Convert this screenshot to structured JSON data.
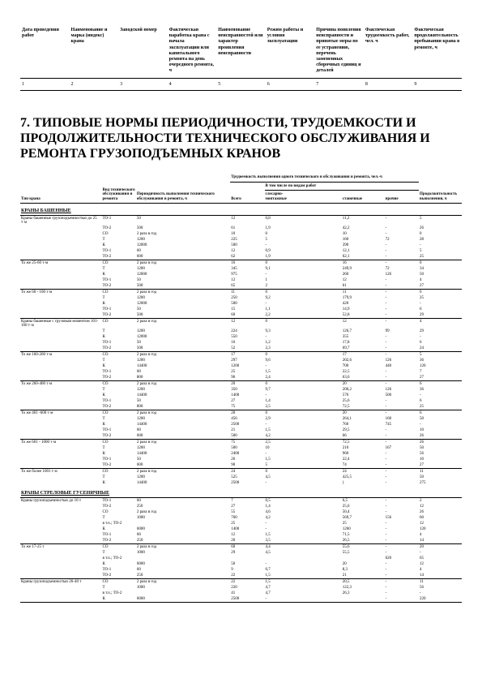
{
  "top_table": {
    "headers": [
      "Дата проведения работ",
      "Наименование и марка (индекс) крана",
      "Заводской номер",
      "Фактическая наработка крана с начала эксплуатации или капитального ремонта на день очередного ремонта, ч",
      "Наименование неисправностей или характер проявления неисправности",
      "Режим работы и условия эксплуатации",
      "Причина появления неисправности и принятые меры по ее устранению, перечень замененных сборочных единиц и деталей",
      "Фактическая трудоемкость работ, чел. ч",
      "Фактическая продолжительность пребывания крана в ремонте, ч"
    ],
    "nums": [
      "1",
      "2",
      "3",
      "4",
      "5",
      "6",
      "7",
      "8",
      "9"
    ]
  },
  "section_title": "7. ТИПОВЫЕ НОРМЫ ПЕРИОДИЧНОСТИ, ТРУДОЕМКОСТИ И ПРОДОЛЖИТЕЛЬНОСТИ ТЕХНИЧЕСКОГО ОБСЛУЖИВАНИЯ И РЕМОНТА ГРУЗОПОДЪЕМНЫХ КРАНОВ",
  "main_table": {
    "headers": {
      "h1": "Тип крана",
      "h2": "Вид технического обслуживания и ремонта",
      "h3": "Периодичность выполнения технического обслуживания и ремонта, ч",
      "h4": "Трудоемкость выполнения одного технического и обслуживания и ремонта, чел.-ч",
      "h4a": "Всего",
      "h4b": "В том числе по видам работ",
      "h4b1": "слесарно-монтажные",
      "h4b2": "станочные",
      "h4b3": "прочие",
      "h5": "Продолжительность выполнения, ч"
    },
    "groups": [
      {
        "title": "КРАНЫ БАШЕННЫЕ",
        "blocks": [
          {
            "name": "Краны башенные грузоподъемностью до 25 т·м",
            "rows": [
              [
                "ТО-1",
                "50",
                "",
                "12",
                "0,8",
                "",
                "11,2",
                "-",
                "5"
              ],
              [
                "ТО-2",
                "500",
                "",
                "61",
                "1,9",
                "",
                "42,2",
                "-",
                "26"
              ],
              [
                "СО",
                "2 раза в год",
                "",
                "10",
                "0",
                "",
                "10",
                "-",
                "0"
              ],
              [
                "Т",
                "1200",
                "",
                "225",
                "5",
                "",
                "160",
                "72",
                "28"
              ],
              [
                "К",
                "12000",
                "",
                "500",
                "-",
                "",
                "390",
                "-",
                "-"
              ],
              [
                "ТО-1",
                "60",
                "",
                "12",
                "0,9",
                "",
                "12,1",
                "-",
                "5"
              ],
              [
                "ТО-2",
                "600",
                "",
                "62",
                "1,9",
                "",
                "62,1",
                "-",
                "25"
              ]
            ]
          },
          {
            "name": "То же 25-60 т·м",
            "rows": [
              [
                "СО",
                "2 раза в год",
                "",
                "16",
                "0",
                "",
                "16",
                "-",
                "0"
              ],
              [
                "Т",
                "1200",
                "",
                "345",
                "9,1",
                "",
                "249,9",
                "72",
                "34"
              ],
              [
                "К",
                "12000",
                "",
                "975",
                "-",
                "",
                "260",
                "126",
                "50"
              ],
              [
                "ТО-1",
                "50",
                "",
                "12",
                "1",
                "",
                "12",
                "-",
                "4"
              ],
              [
                "ТО-2",
                "500",
                "",
                "65",
                "2",
                "",
                "61",
                "-",
                "27"
              ]
            ]
          },
          {
            "name": "То же 60 - 100 т·м",
            "rows": [
              [
                "СО",
                "2 раза в год",
                "",
                "11",
                "0",
                "",
                "11",
                "-",
                "0"
              ],
              [
                "Т",
                "1200",
                "",
                "250",
                "9,2",
                "",
                "179,9",
                "-",
                "25"
              ],
              [
                "К",
                "12000",
                "",
                "500",
                "-",
                "",
                "420",
                "-",
                "-"
              ],
              [
                "ТО-1",
                "50",
                "",
                "15",
                "1,1",
                "",
                "14,9",
                "-",
                "6"
              ],
              [
                "ТО-2",
                "500",
                "",
                "60",
                "2,2",
                "",
                "52,8",
                "-",
                "29"
              ]
            ]
          },
          {
            "name": "Краны башенные с грузовым моментом 101-160 т·м",
            "rows": [
              [
                "СО",
                "2 раза в год",
                "",
                "12",
                "0",
                "",
                "12",
                "-",
                "4"
              ],
              [
                "Т",
                "1200",
                "",
                "224",
                "9,3",
                "",
                "126,7",
                "99",
                "29"
              ],
              [
                "К",
                "12000",
                "",
                "550",
                "-",
                "",
                "355",
                "-",
                "-"
              ],
              [
                "ТО-1",
                "50",
                "",
                "16",
                "1,2",
                "",
                "17,8",
                "-",
                "6"
              ],
              [
                "ТО-2",
                "500",
                "",
                "52",
                "2,3",
                "",
                "69,7",
                "-",
                "24"
              ]
            ]
          },
          {
            "name": "То же 160-260 т·м",
            "rows": [
              [
                "СО",
                "2 раза в год",
                "",
                "17",
                "0",
                "",
                "17",
                "-",
                "5"
              ],
              [
                "Т",
                "1200",
                "",
                "297",
                "9,6",
                "",
                "202,6",
                "126",
                "36"
              ],
              [
                "К",
                "14400",
                "",
                "1200",
                "-",
                "",
                "700",
                "440",
                "120"
              ],
              [
                "ТО-1",
                "60",
                "",
                "25",
                "1,5",
                "",
                "22,5",
                "-",
                "7"
              ],
              [
                "ТО-2",
                "800",
                "",
                "96",
                "2,4",
                "",
                "63,6",
                "-",
                "27"
              ]
            ]
          },
          {
            "name": "То же 260-400 т·м",
            "rows": [
              [
                "СО",
                "2 раза в год",
                "",
                "20",
                "0",
                "",
                "20",
                "-",
                "6"
              ],
              [
                "Т",
                "1200",
                "",
                "350",
                "9,7",
                "",
                "200,2",
                "126",
                "36"
              ],
              [
                "К",
                "14400",
                "",
                "1400",
                "-",
                "",
                "570",
                "500",
                "-"
              ],
              [
                "ТО-1",
                "50",
                "",
                "27",
                "1,4",
                "",
                "25,6",
                "-",
                "6"
              ],
              [
                "ТО-2",
                "800",
                "",
                "75",
                "2,5",
                "",
                "72,5",
                "-",
                "25"
              ]
            ]
          },
          {
            "name": "То же 401 -600 т·м",
            "rows": [
              [
                "СО",
                "2 раза в год",
                "",
                "20",
                "0",
                "",
                "20",
                "-",
                "6"
              ],
              [
                "Т",
                "1200",
                "",
                "456",
                "2,9",
                "",
                "264,1",
                "160",
                "50"
              ],
              [
                "К",
                "14400",
                "",
                "2500",
                "-",
                "",
                "760",
                "745",
                "-"
              ],
              [
                "ТО-1",
                "60",
                "",
                "21",
                "1,5",
                "",
                "29,5",
                "-",
                "10"
              ],
              [
                "ТО-2",
                "600",
                "",
                "500",
                "4,2",
                "",
                "66",
                "-",
                "26"
              ]
            ]
          },
          {
            "name": "То же 601 - 1000 т·м",
            "rows": [
              [
                "СО",
                "2 раза в год",
                "",
                "75",
                "2,5",
                "",
                "72,5",
                "-",
                "26"
              ],
              [
                "Т",
                "1200",
                "",
                "500",
                "10",
                "",
                "210",
                "167",
                "50"
              ],
              [
                "К",
                "14400",
                "",
                "2400",
                "-",
                "",
                "960",
                "-",
                "56"
              ],
              [
                "ТО-1",
                "50",
                "",
                "26",
                "1,5",
                "",
                "22,4",
                "-",
                "10"
              ],
              [
                "ТО-2",
                "600",
                "",
                "90",
                "5",
                "",
                "74",
                "-",
                "27"
              ]
            ]
          },
          {
            "name": "То же более 1001 т·м",
            "rows": [
              [
                "СО",
                "2 раза в год",
                "",
                "24",
                "0",
                "",
                "24",
                "-",
                "11"
              ],
              [
                "Т",
                "1200",
                "",
                "525",
                "4,5",
                "",
                "425,5",
                "-",
                "50"
              ],
              [
                "К",
                "14400",
                "",
                "2500",
                "-",
                "",
                ")",
                "-",
                "275"
              ]
            ]
          }
        ]
      },
      {
        "title": "КРАНЫ СТРЕЛОВЫЕ ГУСЕНИЧНЫЕ",
        "blocks": [
          {
            "name": "Краны грузоподъемностью до 16 т",
            "rows": [
              [
                "ТО-1",
                "60",
                "",
                "7",
                "0,5",
                "",
                "6,5",
                "-",
                "2"
              ],
              [
                "ТО-2",
                "250",
                "",
                "27",
                "1,4",
                "",
                "25,6",
                "-",
                "12"
              ],
              [
                "СО",
                "2 раза в год",
                "",
                "55",
                "4,6",
                "",
                "50,4",
                "-",
                "26"
              ],
              [
                "Т",
                "1000",
                "",
                "760",
                "4,2",
                "",
                "569,7",
                "156",
                "60"
              ],
              [
                "в т.ч.; ТО-2",
                "",
                "",
                "25",
                "-",
                "",
                "25",
                "-",
                "12"
              ],
              [
                "К",
                "6000",
                "",
                "1400",
                "-",
                "",
                "1260",
                "-",
                "120"
              ],
              [
                "ТО-1",
                "60",
                "",
                "12",
                "1,5",
                "",
                "71,5",
                "-",
                "4"
              ],
              [
                "ТО-2",
                "250",
                "",
                "20",
                "3,5",
                "",
                "26,5",
                "-",
                "14"
              ]
            ]
          },
          {
            "name": "То же 17-25 т",
            "rows": [
              [
                "СО",
                "2 раза в год",
                "",
                "60",
                "4,4",
                "",
                "55,6",
                "-",
                "20"
              ],
              [
                "Т",
                "1000",
                "",
                "29",
                "4,5",
                "",
                "55,5",
                "-",
                "-"
              ],
              [
                "в т.ч.; ТО-2",
                "",
                "",
                "",
                "",
                "",
                "",
                "620",
                "65"
              ],
              [
                "К",
                "6000",
                "",
                "50",
                "-",
                "",
                "20",
                "-",
                "12"
              ],
              [
                "ТО-1",
                "60",
                "",
                "9",
                "0,7",
                "",
                "8,3",
                "-",
                "4"
              ],
              [
                "ТО-2",
                "250",
                "",
                "22",
                "1,5",
                "",
                "21",
                "-",
                "14"
              ]
            ]
          },
          {
            "name": "Краны грузоподъемностью 26-40 т",
            "rows": [
              [
                "СО",
                "2 раза в год",
                "",
                "22",
                "1,5",
                "",
                "20,5",
                "-",
                "11"
              ],
              [
                "Т",
                "1000",
                "",
                "220",
                "4,7",
                "",
                "122,3",
                "-",
                "56"
              ],
              [
                "в т.ч.; ТО-2",
                "",
                "",
                "41",
                "4,7",
                "",
                "26,3",
                "-",
                "-"
              ],
              [
                "К",
                "6000",
                "",
                "2500",
                "-",
                "",
                "",
                "-",
                "220"
              ]
            ]
          }
        ]
      }
    ]
  }
}
